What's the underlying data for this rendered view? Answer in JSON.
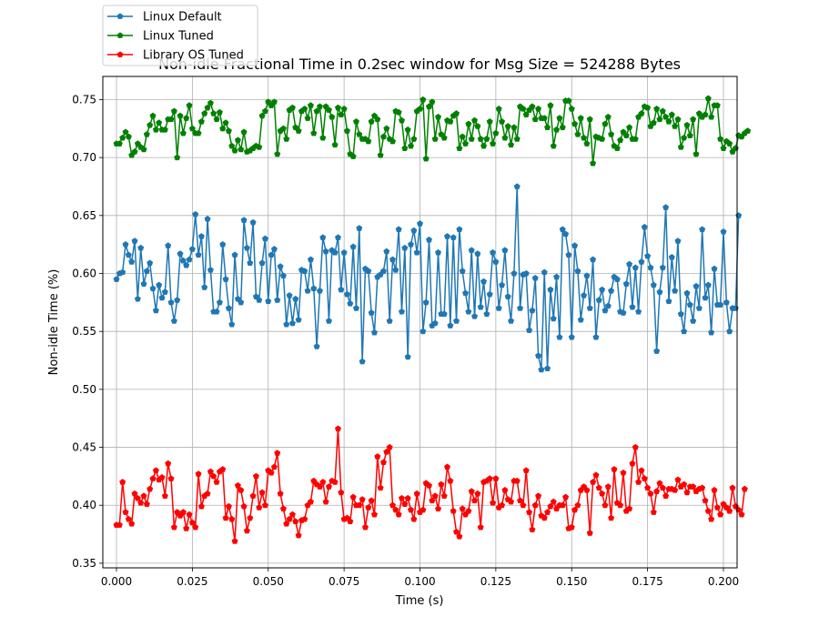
{
  "chart_data": {
    "type": "line",
    "title": "Non-idle Fractional Time in 0.2sec window for Msg Size = 524288 Bytes",
    "xlabel": "Time (s)",
    "ylabel": "Non-idle Time (%)",
    "xlim": [
      -0.0045,
      0.2045
    ],
    "ylim": [
      0.346,
      0.77
    ],
    "grid": true,
    "legend_position": "top-left",
    "x_ticks": [
      0.0,
      0.025,
      0.05,
      0.075,
      0.1,
      0.125,
      0.15,
      0.175,
      0.2
    ],
    "x_tick_labels": [
      "0.000",
      "0.025",
      "0.050",
      "0.075",
      "0.100",
      "0.125",
      "0.150",
      "0.175",
      "0.200"
    ],
    "y_ticks": [
      0.35,
      0.4,
      0.45,
      0.5,
      0.55,
      0.6,
      0.65,
      0.7,
      0.75
    ],
    "y_tick_labels": [
      "0.35",
      "0.40",
      "0.45",
      "0.50",
      "0.55",
      "0.60",
      "0.65",
      "0.70",
      "0.75"
    ],
    "x_start": 0.0,
    "x_step": 0.001,
    "series": [
      {
        "name": "Linux Default",
        "color": "#1f77b4",
        "marker": "pentagon",
        "values": [
          0.595,
          0.6,
          0.601,
          0.625,
          0.616,
          0.61,
          0.628,
          0.578,
          0.622,
          0.591,
          0.602,
          0.609,
          0.587,
          0.568,
          0.59,
          0.579,
          0.584,
          0.624,
          0.575,
          0.559,
          0.577,
          0.617,
          0.611,
          0.607,
          0.612,
          0.621,
          0.651,
          0.616,
          0.632,
          0.588,
          0.647,
          0.603,
          0.567,
          0.567,
          0.575,
          0.625,
          0.595,
          0.57,
          0.556,
          0.616,
          0.578,
          0.575,
          0.646,
          0.622,
          0.609,
          0.644,
          0.58,
          0.577,
          0.609,
          0.63,
          0.576,
          0.616,
          0.621,
          0.577,
          0.606,
          0.598,
          0.556,
          0.581,
          0.557,
          0.578,
          0.56,
          0.603,
          0.602,
          0.585,
          0.612,
          0.587,
          0.537,
          0.585,
          0.631,
          0.619,
          0.559,
          0.62,
          0.618,
          0.631,
          0.586,
          0.618,
          0.582,
          0.574,
          0.623,
          0.57,
          0.639,
          0.524,
          0.604,
          0.602,
          0.566,
          0.549,
          0.597,
          0.599,
          0.602,
          0.619,
          0.559,
          0.612,
          0.603,
          0.638,
          0.567,
          0.622,
          0.528,
          0.625,
          0.637,
          0.618,
          0.643,
          0.55,
          0.575,
          0.629,
          0.555,
          0.557,
          0.618,
          0.565,
          0.565,
          0.632,
          0.555,
          0.631,
          0.559,
          0.638,
          0.602,
          0.583,
          0.567,
          0.62,
          0.563,
          0.617,
          0.571,
          0.593,
          0.565,
          0.582,
          0.618,
          0.61,
          0.57,
          0.59,
          0.62,
          0.58,
          0.559,
          0.6,
          0.675,
          0.57,
          0.599,
          0.6,
          0.551,
          0.568,
          0.596,
          0.529,
          0.517,
          0.601,
          0.518,
          0.586,
          0.561,
          0.597,
          0.545,
          0.638,
          0.634,
          0.616,
          0.545,
          0.624,
          0.602,
          0.56,
          0.581,
          0.598,
          0.57,
          0.612,
          0.545,
          0.577,
          0.586,
          0.568,
          0.572,
          0.585,
          0.597,
          0.595,
          0.567,
          0.566,
          0.591,
          0.608,
          0.571,
          0.605,
          0.567,
          0.61,
          0.64,
          0.615,
          0.605,
          0.59,
          0.533,
          0.584,
          0.605,
          0.657,
          0.576,
          0.614,
          0.585,
          0.628,
          0.565,
          0.55,
          0.583,
          0.573,
          0.559,
          0.589,
          0.57,
          0.638,
          0.579,
          0.59,
          0.549,
          0.604,
          0.573,
          0.573,
          0.636,
          0.575,
          0.55,
          0.57,
          0.57,
          0.65
        ]
      },
      {
        "name": "Linux Tuned",
        "color": "#008000",
        "marker": "pentagon",
        "values": [
          0.712,
          0.712,
          0.717,
          0.722,
          0.718,
          0.702,
          0.705,
          0.712,
          0.709,
          0.707,
          0.72,
          0.728,
          0.736,
          0.724,
          0.73,
          0.724,
          0.724,
          0.733,
          0.733,
          0.74,
          0.7,
          0.736,
          0.721,
          0.734,
          0.745,
          0.725,
          0.721,
          0.721,
          0.731,
          0.738,
          0.743,
          0.747,
          0.738,
          0.733,
          0.739,
          0.725,
          0.73,
          0.723,
          0.71,
          0.706,
          0.715,
          0.707,
          0.722,
          0.705,
          0.706,
          0.708,
          0.71,
          0.709,
          0.736,
          0.74,
          0.748,
          0.745,
          0.748,
          0.703,
          0.723,
          0.725,
          0.716,
          0.741,
          0.743,
          0.726,
          0.723,
          0.74,
          0.742,
          0.734,
          0.745,
          0.721,
          0.74,
          0.744,
          0.717,
          0.744,
          0.741,
          0.735,
          0.711,
          0.743,
          0.737,
          0.742,
          0.723,
          0.703,
          0.701,
          0.731,
          0.72,
          0.716,
          0.716,
          0.714,
          0.731,
          0.736,
          0.733,
          0.702,
          0.718,
          0.725,
          0.716,
          0.714,
          0.74,
          0.739,
          0.732,
          0.708,
          0.724,
          0.71,
          0.716,
          0.74,
          0.742,
          0.75,
          0.699,
          0.744,
          0.748,
          0.716,
          0.735,
          0.72,
          0.717,
          0.732,
          0.731,
          0.736,
          0.738,
          0.708,
          0.718,
          0.712,
          0.729,
          0.716,
          0.732,
          0.727,
          0.716,
          0.71,
          0.716,
          0.731,
          0.712,
          0.721,
          0.742,
          0.731,
          0.717,
          0.727,
          0.711,
          0.726,
          0.716,
          0.744,
          0.742,
          0.737,
          0.741,
          0.744,
          0.733,
          0.742,
          0.734,
          0.734,
          0.726,
          0.745,
          0.71,
          0.724,
          0.734,
          0.726,
          0.749,
          0.749,
          0.742,
          0.729,
          0.72,
          0.734,
          0.717,
          0.712,
          0.733,
          0.695,
          0.718,
          0.717,
          0.716,
          0.729,
          0.735,
          0.72,
          0.71,
          0.708,
          0.715,
          0.722,
          0.719,
          0.726,
          0.716,
          0.716,
          0.735,
          0.738,
          0.744,
          0.743,
          0.727,
          0.73,
          0.742,
          0.733,
          0.74,
          0.735,
          0.731,
          0.737,
          0.727,
          0.733,
          0.709,
          0.717,
          0.728,
          0.719,
          0.733,
          0.703,
          0.738,
          0.735,
          0.737,
          0.751,
          0.735,
          0.745,
          0.745,
          0.716,
          0.708,
          0.714,
          0.712,
          0.705,
          0.708,
          0.719,
          0.718,
          0.721,
          0.723
        ]
      },
      {
        "name": "Library OS Tuned",
        "color": "#ff0000",
        "marker": "pentagon",
        "values": [
          0.383,
          0.383,
          0.42,
          0.394,
          0.388,
          0.384,
          0.41,
          0.406,
          0.402,
          0.408,
          0.401,
          0.414,
          0.423,
          0.43,
          0.422,
          0.424,
          0.408,
          0.436,
          0.423,
          0.381,
          0.394,
          0.391,
          0.394,
          0.38,
          0.392,
          0.385,
          0.381,
          0.427,
          0.399,
          0.408,
          0.41,
          0.429,
          0.425,
          0.42,
          0.429,
          0.431,
          0.389,
          0.399,
          0.388,
          0.369,
          0.417,
          0.413,
          0.399,
          0.378,
          0.389,
          0.408,
          0.425,
          0.398,
          0.411,
          0.4,
          0.43,
          0.428,
          0.433,
          0.445,
          0.41,
          0.397,
          0.384,
          0.388,
          0.392,
          0.386,
          0.374,
          0.387,
          0.388,
          0.4,
          0.403,
          0.421,
          0.418,
          0.416,
          0.42,
          0.403,
          0.416,
          0.421,
          0.42,
          0.466,
          0.411,
          0.388,
          0.389,
          0.386,
          0.407,
          0.4,
          0.4,
          0.405,
          0.381,
          0.398,
          0.404,
          0.392,
          0.442,
          0.415,
          0.437,
          0.446,
          0.45,
          0.4,
          0.396,
          0.392,
          0.406,
          0.401,
          0.406,
          0.396,
          0.388,
          0.41,
          0.394,
          0.396,
          0.419,
          0.417,
          0.404,
          0.408,
          0.397,
          0.418,
          0.408,
          0.433,
          0.421,
          0.395,
          0.377,
          0.373,
          0.397,
          0.392,
          0.395,
          0.412,
          0.404,
          0.41,
          0.381,
          0.42,
          0.421,
          0.423,
          0.402,
          0.423,
          0.398,
          0.4,
          0.413,
          0.405,
          0.403,
          0.421,
          0.421,
          0.404,
          0.4,
          0.43,
          0.394,
          0.379,
          0.4,
          0.408,
          0.391,
          0.389,
          0.394,
          0.399,
          0.403,
          0.397,
          0.4,
          0.4,
          0.407,
          0.38,
          0.381,
          0.396,
          0.4,
          0.413,
          0.416,
          0.413,
          0.376,
          0.42,
          0.426,
          0.415,
          0.41,
          0.4,
          0.416,
          0.389,
          0.431,
          0.402,
          0.4,
          0.428,
          0.395,
          0.397,
          0.436,
          0.45,
          0.42,
          0.43,
          0.423,
          0.415,
          0.41,
          0.394,
          0.412,
          0.419,
          0.415,
          0.408,
          0.414,
          0.414,
          0.413,
          0.422,
          0.416,
          0.418,
          0.411,
          0.416,
          0.416,
          0.412,
          0.414,
          0.415,
          0.404,
          0.395,
          0.388,
          0.413,
          0.398,
          0.392,
          0.401,
          0.398,
          0.395,
          0.415,
          0.399,
          0.396,
          0.392,
          0.414
        ]
      }
    ]
  }
}
